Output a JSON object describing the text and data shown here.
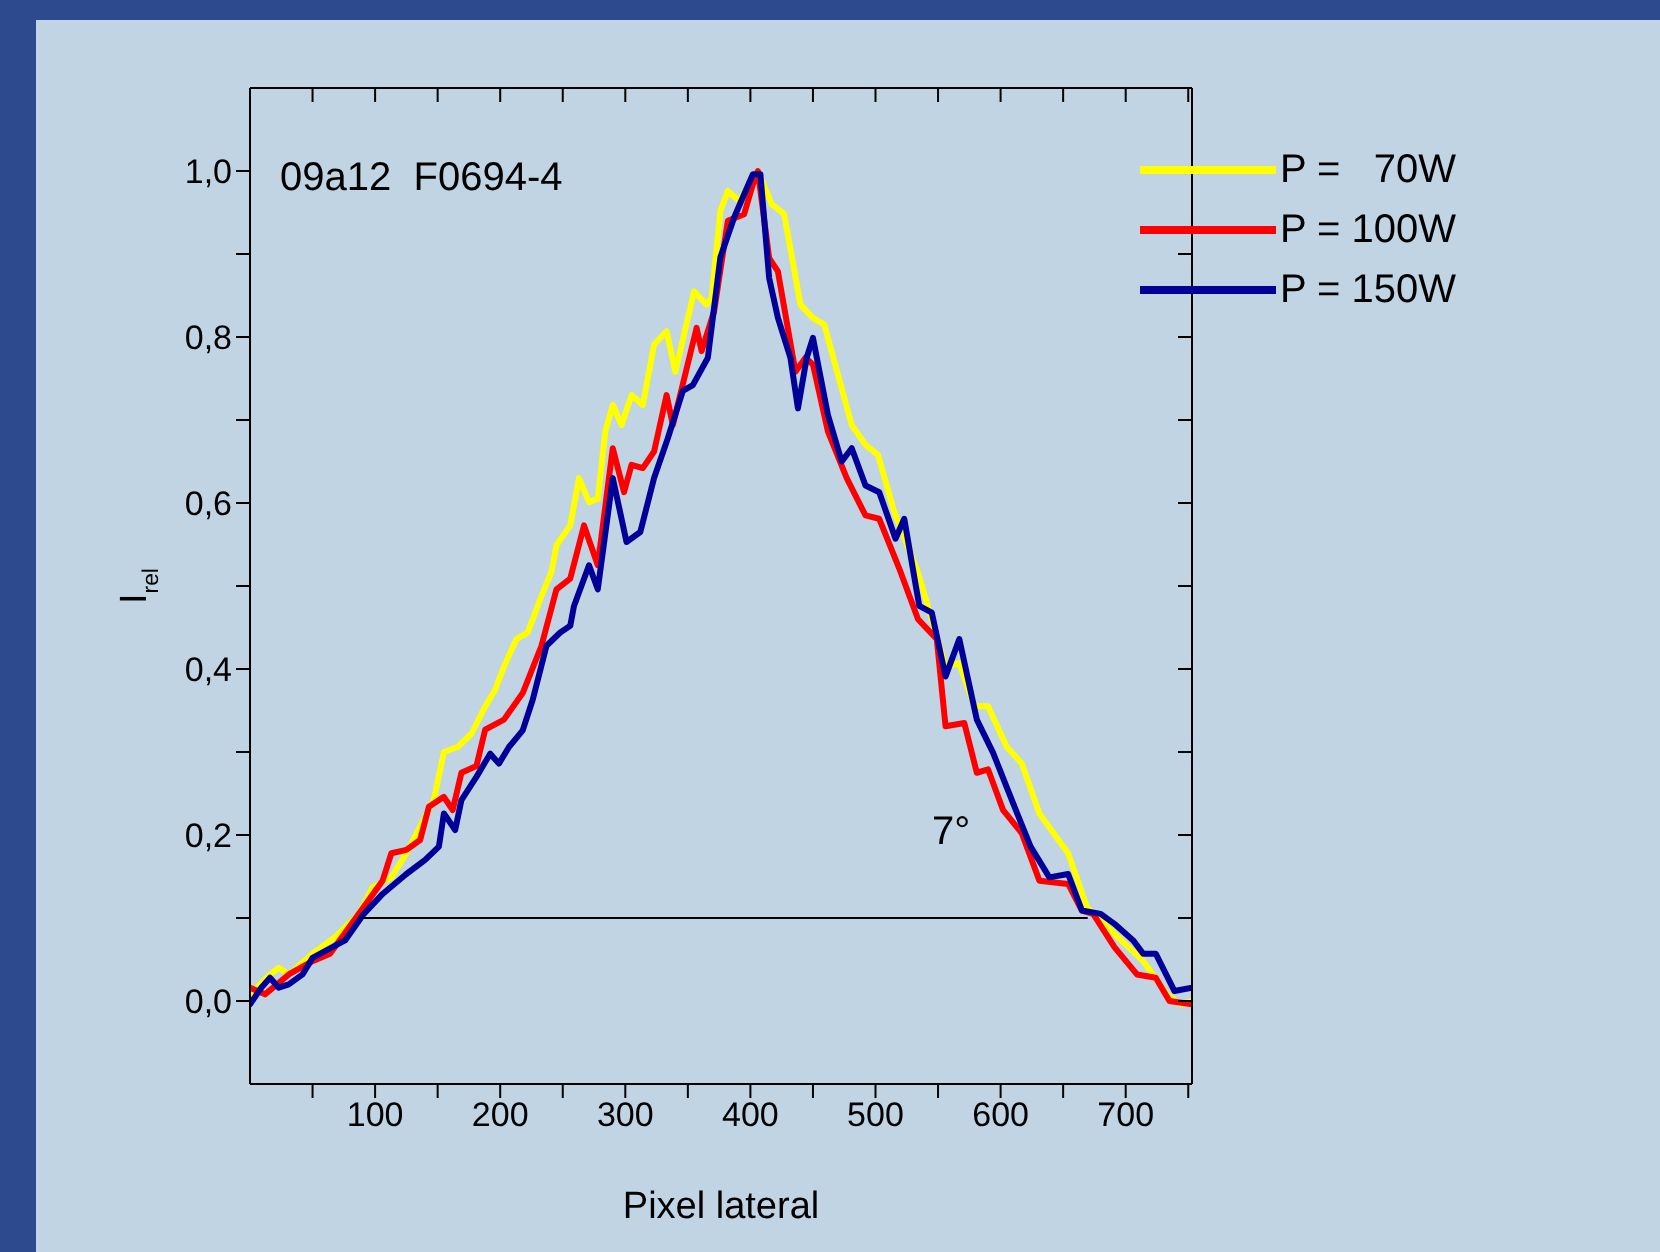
{
  "chart_data": {
    "type": "line",
    "xlabel": "Pixel lateral",
    "ylabel": "I$_{rel}$",
    "xlim": [
      0,
      753
    ],
    "ylim": [
      -0.1,
      1.1
    ],
    "xticks": [
      {
        "value": 50,
        "label": null
      },
      100,
      {
        "value": 150,
        "label": null
      },
      200,
      {
        "value": 250,
        "label": null
      },
      300,
      {
        "value": 350,
        "label": null
      },
      400,
      {
        "value": 450,
        "label": null
      },
      500,
      {
        "value": 550,
        "label": null
      },
      600,
      {
        "value": 650,
        "label": null
      },
      700,
      {
        "value": 750,
        "label": null
      }
    ],
    "yticks": [
      {
        "value": 0,
        "label": "0,0"
      },
      {
        "value": 0.1,
        "label": null
      },
      {
        "value": 0.2,
        "label": "0,2"
      },
      {
        "value": 0.3,
        "label": null
      },
      {
        "value": 0.4,
        "label": "0,4"
      },
      {
        "value": 0.5,
        "label": null
      },
      {
        "value": 0.6,
        "label": "0,6"
      },
      {
        "value": 0.7,
        "label": null
      },
      {
        "value": 0.8,
        "label": "0,8"
      },
      {
        "value": 0.9,
        "label": null
      },
      {
        "value": 1.0,
        "label": "1,0"
      }
    ],
    "legend": "top right",
    "annotations": [
      "09a12  F0694-4",
      "7°"
    ],
    "series": [
      {
        "name": "P =   70W",
        "color": "#ffff00",
        "x": [
          0,
          16,
          23,
          31,
          50,
          68,
          87,
          98,
          113,
          125,
          136,
          147,
          155,
          166,
          177,
          188,
          196,
          203,
          213,
          222,
          233,
          241,
          245,
          256,
          263,
          271,
          278,
          284,
          290,
          297,
          305,
          314,
          323,
          333,
          340,
          355,
          365,
          369,
          376,
          382,
          391,
          406,
          417,
          427,
          440,
          450,
          459,
          481,
          492,
          502,
          515,
          534,
          556,
          567,
          579,
          590,
          605,
          617,
          631,
          654,
          669,
          691,
          714,
          733,
          744,
          753
        ],
        "values": [
          0.008,
          0.032,
          0.04,
          0.032,
          0.057,
          0.077,
          0.105,
          0.137,
          0.149,
          0.178,
          0.21,
          0.243,
          0.3,
          0.306,
          0.322,
          0.355,
          0.375,
          0.403,
          0.436,
          0.444,
          0.488,
          0.517,
          0.549,
          0.573,
          0.63,
          0.601,
          0.605,
          0.686,
          0.718,
          0.694,
          0.73,
          0.718,
          0.791,
          0.807,
          0.758,
          0.855,
          0.839,
          0.847,
          0.952,
          0.976,
          0.964,
          1.0,
          0.96,
          0.948,
          0.839,
          0.823,
          0.815,
          0.694,
          0.67,
          0.658,
          0.589,
          0.516,
          0.403,
          0.407,
          0.355,
          0.355,
          0.306,
          0.286,
          0.226,
          0.178,
          0.113,
          0.081,
          0.048,
          0.008,
          -0.004,
          0.0
        ]
      },
      {
        "name": "P = 100W",
        "color": "#ff0000",
        "x": [
          0,
          12,
          31,
          50,
          64,
          87,
          106,
          113,
          125,
          136,
          143,
          155,
          162,
          169,
          181,
          188,
          203,
          218,
          233,
          245,
          256,
          267,
          278,
          290,
          299,
          305,
          314,
          323,
          333,
          338,
          357,
          361,
          371,
          382,
          395,
          402,
          406,
          415,
          422,
          436,
          444,
          450,
          462,
          477,
          492,
          503,
          519,
          534,
          549,
          556,
          571,
          581,
          590,
          602,
          617,
          631,
          654,
          665,
          674,
          691,
          709,
          724,
          735,
          753
        ],
        "values": [
          0.016,
          0.008,
          0.032,
          0.048,
          0.057,
          0.105,
          0.145,
          0.178,
          0.182,
          0.194,
          0.234,
          0.246,
          0.23,
          0.275,
          0.283,
          0.327,
          0.339,
          0.371,
          0.428,
          0.496,
          0.509,
          0.573,
          0.525,
          0.666,
          0.613,
          0.646,
          0.642,
          0.662,
          0.73,
          0.694,
          0.811,
          0.783,
          0.831,
          0.94,
          0.948,
          0.984,
          1.0,
          0.895,
          0.879,
          0.758,
          0.775,
          0.767,
          0.686,
          0.63,
          0.585,
          0.581,
          0.521,
          0.46,
          0.436,
          0.331,
          0.335,
          0.275,
          0.279,
          0.23,
          0.202,
          0.145,
          0.141,
          0.109,
          0.105,
          0.065,
          0.032,
          0.028,
          0.0,
          -0.004
        ]
      },
      {
        "name": "P = 150W",
        "color": "#000099",
        "x": [
          0,
          9,
          16,
          23,
          31,
          42,
          50,
          61,
          76,
          91,
          106,
          125,
          140,
          151,
          155,
          164,
          169,
          181,
          192,
          199,
          207,
          218,
          226,
          237,
          248,
          256,
          259,
          271,
          278,
          290,
          301,
          312,
          323,
          334,
          346,
          354,
          366,
          376,
          387,
          395,
          402,
          408,
          415,
          422,
          432,
          438,
          445,
          450,
          462,
          473,
          481,
          492,
          503,
          516,
          523,
          535,
          545,
          556,
          567,
          581,
          594,
          609,
          624,
          639,
          654,
          665,
          680,
          691,
          706,
          714,
          724,
          739,
          753
        ],
        "values": [
          -0.004,
          0.016,
          0.028,
          0.016,
          0.02,
          0.032,
          0.052,
          0.061,
          0.073,
          0.105,
          0.129,
          0.153,
          0.17,
          0.186,
          0.226,
          0.206,
          0.242,
          0.27,
          0.298,
          0.286,
          0.306,
          0.326,
          0.363,
          0.428,
          0.444,
          0.452,
          0.476,
          0.525,
          0.496,
          0.63,
          0.553,
          0.565,
          0.63,
          0.678,
          0.735,
          0.742,
          0.775,
          0.896,
          0.944,
          0.972,
          0.996,
          0.996,
          0.871,
          0.823,
          0.775,
          0.714,
          0.775,
          0.799,
          0.706,
          0.65,
          0.666,
          0.621,
          0.613,
          0.557,
          0.581,
          0.476,
          0.468,
          0.391,
          0.436,
          0.339,
          0.299,
          0.242,
          0.186,
          0.149,
          0.153,
          0.109,
          0.105,
          0.093,
          0.073,
          0.057,
          0.057,
          0.012,
          0.016
        ]
      },
      {
        "color": "#000000",
        "x": [
          89,
          669
        ],
        "values": [
          0.1,
          0.1
        ]
      }
    ]
  }
}
